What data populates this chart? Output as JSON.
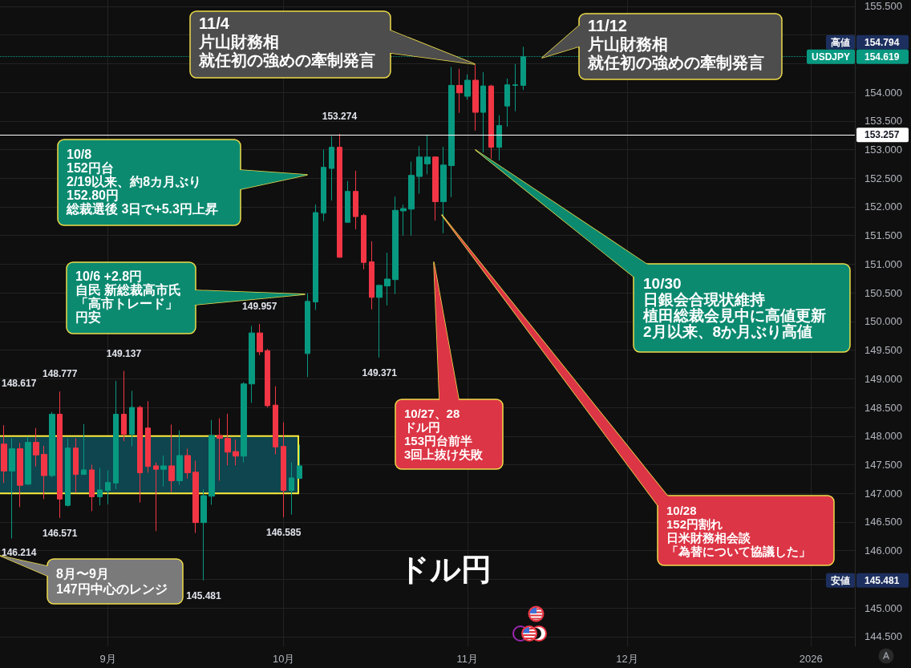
{
  "chart_data": {
    "type": "candlestick",
    "title": "ドル円",
    "categories": [
      null,
      null,
      null,
      null,
      null,
      null,
      null,
      null,
      null,
      null,
      null,
      null,
      null,
      "9月",
      null,
      null,
      null,
      null,
      null,
      null,
      null,
      null,
      null,
      null,
      null,
      null,
      null,
      null,
      null,
      null,
      null,
      null,
      null,
      null,
      null,
      "10月",
      null,
      null,
      null,
      null,
      null,
      null,
      null,
      null,
      null,
      null,
      null,
      null,
      null,
      null,
      null,
      null,
      null,
      null,
      null,
      null,
      null,
      null,
      "11月",
      null,
      null,
      null,
      null,
      null,
      null,
      null,
      null,
      null,
      null,
      null,
      null,
      null,
      null,
      null,
      null,
      null,
      null,
      null,
      "12月",
      null,
      null,
      null,
      null,
      null,
      null,
      null,
      null,
      null,
      null,
      null,
      null,
      null,
      null,
      null,
      null,
      null,
      null,
      null,
      null,
      null,
      null,
      "2026",
      null,
      null,
      null,
      null,
      null
    ],
    "ohlc": [
      [
        147.86,
        148.19,
        147.18,
        147.39
      ],
      [
        147.39,
        147.96,
        146.214,
        147.78
      ],
      [
        147.78,
        147.88,
        146.76,
        147.14
      ],
      [
        147.16,
        147.99,
        147.15,
        147.89
      ],
      [
        147.89,
        148.14,
        147.47,
        147.67
      ],
      [
        147.68,
        147.83,
        146.9,
        147.31
      ],
      [
        147.31,
        148.42,
        147.28,
        148.38
      ],
      [
        148.38,
        148.777,
        146.571,
        146.9
      ],
      [
        146.79,
        147.96,
        146.77,
        147.79
      ],
      [
        147.79,
        147.96,
        147.01,
        147.33
      ],
      [
        147.33,
        148.21,
        147.33,
        147.41
      ],
      [
        147.41,
        147.5,
        146.69,
        146.94
      ],
      [
        146.94,
        147.44,
        146.79,
        147.06
      ],
      [
        147.05,
        147.4,
        146.81,
        147.19
      ],
      [
        147.18,
        148.96,
        147.07,
        148.38
      ],
      [
        148.38,
        149.137,
        147.91,
        148.03
      ],
      [
        148.03,
        148.79,
        147.82,
        148.5
      ],
      [
        148.5,
        148.53,
        146.84,
        147.36
      ],
      [
        148.14,
        148.61,
        147.36,
        147.47
      ],
      [
        147.48,
        147.54,
        146.34,
        147.42
      ],
      [
        147.42,
        147.66,
        147.12,
        147.48
      ],
      [
        147.48,
        148.2,
        147.02,
        147.22
      ],
      [
        147.22,
        148.1,
        147.15,
        147.66
      ],
      [
        147.66,
        147.78,
        147.26,
        147.36
      ],
      [
        147.37,
        147.57,
        146.31,
        146.49
      ],
      [
        146.49,
        147.07,
        145.481,
        146.96
      ],
      [
        146.95,
        148.28,
        146.8,
        148.01
      ],
      [
        148.01,
        148.31,
        147.22,
        147.96
      ],
      [
        147.96,
        148.39,
        147.49,
        147.72
      ],
      [
        147.73,
        147.94,
        147.49,
        147.65
      ],
      [
        147.65,
        148.94,
        147.54,
        148.91
      ],
      [
        148.91,
        149.92,
        148.58,
        149.8
      ],
      [
        149.8,
        149.957,
        149.41,
        149.47
      ],
      [
        149.49,
        149.52,
        148.5,
        148.53
      ],
      [
        148.54,
        148.87,
        147.68,
        147.81
      ],
      [
        147.82,
        148.24,
        146.585,
        147.05
      ],
      [
        147.05,
        147.54,
        146.63,
        147.27
      ],
      [
        147.26,
        147.85,
        147.26,
        147.48
      ],
      [
        149.44,
        150.49,
        149.03,
        150.35
      ],
      [
        150.34,
        152.04,
        150.2,
        151.9
      ],
      [
        151.89,
        153.0,
        151.75,
        152.69
      ],
      [
        152.67,
        153.23,
        152.11,
        153.04
      ],
      [
        153.04,
        153.274,
        151.11,
        151.12
      ],
      [
        151.73,
        152.45,
        151.73,
        152.27
      ],
      [
        152.27,
        152.63,
        151.61,
        151.83
      ],
      [
        151.85,
        151.88,
        150.91,
        151.03
      ],
      [
        151.04,
        151.4,
        150.21,
        150.42
      ],
      [
        150.42,
        150.64,
        149.371,
        150.63
      ],
      [
        150.62,
        151.2,
        150.28,
        150.74
      ],
      [
        150.73,
        152.18,
        150.48,
        151.94
      ],
      [
        151.93,
        152.04,
        151.5,
        151.97
      ],
      [
        151.96,
        152.79,
        151.5,
        152.55
      ],
      [
        152.53,
        153.06,
        152.23,
        152.87
      ],
      [
        152.75,
        153.26,
        152.57,
        152.87
      ],
      [
        152.87,
        152.88,
        151.76,
        152.09
      ],
      [
        152.09,
        153.05,
        151.54,
        152.73
      ],
      [
        152.72,
        154.44,
        152.17,
        154.12
      ],
      [
        154.12,
        154.41,
        153.64,
        153.99
      ],
      [
        153.93,
        154.31,
        153.87,
        154.21
      ],
      [
        154.21,
        154.48,
        153.33,
        153.65
      ],
      [
        153.65,
        154.35,
        152.95,
        154.11
      ],
      [
        154.11,
        154.13,
        152.84,
        153.04
      ],
      [
        153.04,
        153.6,
        152.81,
        153.42
      ],
      [
        153.76,
        154.24,
        153.4,
        154.13
      ],
      [
        154.12,
        154.49,
        153.67,
        154.13
      ],
      [
        154.12,
        154.794,
        154.04,
        154.619
      ],
      null,
      null,
      null,
      null,
      null,
      null,
      null,
      null,
      null,
      null,
      null,
      null,
      null,
      null,
      null,
      null,
      null,
      null,
      null,
      null,
      null,
      null,
      null,
      null,
      null,
      null,
      null,
      null,
      null,
      null,
      null,
      null,
      null,
      null,
      null,
      null,
      null,
      null,
      null,
      null,
      null
    ],
    "colors": [
      "#f23645",
      "#089981",
      "#f23645",
      "#089981",
      "#f23645",
      "#f23645",
      "#089981",
      "#f23645",
      "#089981",
      "#f23645",
      "#089981",
      "#f23645",
      "#089981",
      "#089981",
      "#089981",
      "#f23645",
      "#089981",
      "#f23645",
      "#f23645",
      "#f23645",
      "#089981",
      "#f23645",
      "#089981",
      "#f23645",
      "#f23645",
      "#089981",
      "#089981",
      "#f23645",
      "#f23645",
      "#f23645",
      "#089981",
      "#089981",
      "#f23645",
      "#f23645",
      "#f23645",
      "#f23645",
      "#089981",
      "#089981",
      "#089981",
      "#089981",
      "#089981",
      "#089981",
      "#f23645",
      "#089981",
      "#f23645",
      "#f23645",
      "#f23645",
      "#089981",
      "#089981",
      "#089981",
      "#089981",
      "#089981",
      "#089981",
      "#089981",
      "#f23645",
      "#089981",
      "#089981",
      "#f23645",
      "#089981",
      "#f23645",
      "#089981",
      "#f23645",
      "#089981",
      "#089981",
      "#089981",
      "#089981",
      null,
      null,
      null,
      null,
      null,
      null,
      null,
      null,
      null,
      null,
      null,
      null,
      null,
      null,
      null,
      null,
      null,
      null,
      null,
      null,
      null,
      null,
      null,
      null,
      null,
      null,
      null,
      null,
      null,
      null,
      null,
      null,
      null,
      null,
      null,
      null,
      null,
      null,
      null,
      null,
      null
    ],
    "ylim": [
      144.33,
      155.61
    ],
    "yticks": [
      {
        "value": 144.5,
        "label": "144.500"
      },
      {
        "value": 145,
        "label": "145.000"
      },
      {
        "value": 145.5,
        "label": null
      },
      {
        "value": 146,
        "label": "146.000"
      },
      {
        "value": 146.5,
        "label": "146.500"
      },
      {
        "value": 147,
        "label": "147.000"
      },
      {
        "value": 147.5,
        "label": "147.500"
      },
      {
        "value": 148,
        "label": "148.000"
      },
      {
        "value": 148.5,
        "label": "148.500"
      },
      {
        "value": 149,
        "label": "149.000"
      },
      {
        "value": 149.5,
        "label": "149.500"
      },
      {
        "value": 150,
        "label": "150.000"
      },
      {
        "value": 150.5,
        "label": "150.500"
      },
      {
        "value": 151,
        "label": "151.000"
      },
      {
        "value": 151.5,
        "label": "151.500"
      },
      {
        "value": 152,
        "label": "152.000"
      },
      {
        "value": 152.5,
        "label": "152.500"
      },
      {
        "value": 153,
        "label": "153.000"
      },
      {
        "value": 153.5,
        "label": "153.500"
      },
      {
        "value": 154,
        "label": "154.000"
      },
      {
        "value": 154.5,
        "label": null
      },
      {
        "value": 155,
        "label": null
      },
      {
        "value": 155.5,
        "label": "155.500"
      }
    ],
    "grid": true,
    "ref_lines": [
      {
        "axis": "y",
        "value": 154.619,
        "label": "USDJPY",
        "color": "#089981",
        "line_style": "dotted"
      },
      {
        "axis": "y",
        "value": 153.257,
        "label": "153.257",
        "color": "#ffffff",
        "line_style": "solid"
      }
    ],
    "bands": [
      {
        "axis": "y",
        "from": 147,
        "to": 148,
        "color": "#0e454e"
      }
    ],
    "annotations": [
      "11/4",
      "片山財務相",
      "就任初の強めの牽制発言",
      "11/12",
      "片山財務相",
      "就任初の強めの牽制発言",
      "10/8",
      "152円台",
      "2/19以来、約8カ月ぶり",
      "152.80円",
      "総裁選後 3日で+5.3円上昇",
      "10/6 +2.8円",
      "自民 新総裁高市氏",
      "「高市トレード」",
      "円安",
      "10/30",
      "日銀会合現状維持",
      "植田総裁会見中に高値更新",
      "2月以来、8か月ぶり高値",
      "10/27、28",
      "ドル円",
      "153円台前半",
      "3回上抜け失敗",
      "10/28",
      "152円割れ",
      "日米財務相会談",
      "「為替について協議した」",
      "8月〜9月",
      "147円中心のレンジ",
      {
        "text": "153.274",
        "y": 153.274
      },
      {
        "text": "149.957",
        "y": 149.957
      },
      {
        "text": "149.371",
        "y": 149.371
      },
      {
        "text": "149.137",
        "y": 149.137
      },
      {
        "text": "148.777",
        "y": 148.777
      },
      {
        "text": "146.571",
        "y": 146.571
      },
      {
        "text": "146.585",
        "y": 146.585
      },
      "148.617",
      "146.214",
      "145.481",
      "高値",
      "154.794",
      "安値",
      "145.481",
      "154.619"
    ]
  }
}
